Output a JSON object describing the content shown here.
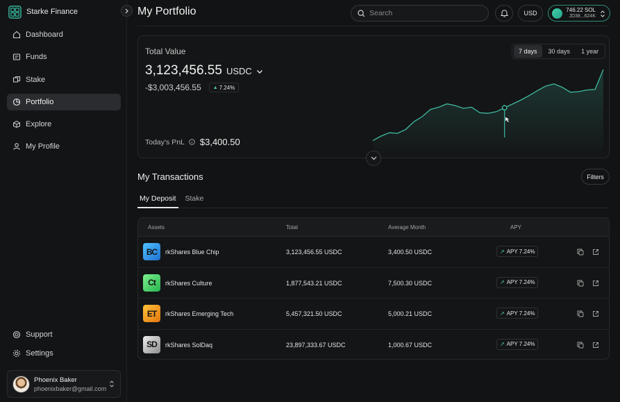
{
  "app": {
    "name": "Starke Finance"
  },
  "sidebar": {
    "items": [
      {
        "label": "Dashboard",
        "icon": "home-icon"
      },
      {
        "label": "Funds",
        "icon": "funds-icon"
      },
      {
        "label": "Stake",
        "icon": "stake-icon"
      },
      {
        "label": "Portfolio",
        "icon": "portfolio-icon",
        "active": true
      },
      {
        "label": "Explore",
        "icon": "explore-icon"
      },
      {
        "label": "My Profile",
        "icon": "profile-icon"
      }
    ],
    "bottom": [
      {
        "label": "Support",
        "icon": "support-icon"
      },
      {
        "label": "Settings",
        "icon": "gear-icon"
      }
    ],
    "user": {
      "name": "Phoenix Baker",
      "email": "phoenixbaker@gmail.com"
    }
  },
  "header": {
    "title": "My Portfolio",
    "search_placeholder": "Search",
    "currency": "USD",
    "wallet": {
      "balance": "746.22 SOL",
      "address": "JD38...624K"
    }
  },
  "portfolio": {
    "total_label": "Total Value",
    "total_value": "3,123,456.55",
    "unit": "USDC",
    "change": "-$3,003,456.55",
    "change_pct": "7.24%",
    "pnl_label": "Today's PnL",
    "pnl_value": "$3,400.50",
    "ranges": [
      "7 days",
      "30 days",
      "1 year"
    ],
    "active_range": "7 days"
  },
  "chart_data": {
    "type": "area",
    "title": "Total Value",
    "x": [
      0,
      1,
      2,
      3,
      4,
      5,
      6,
      7,
      8,
      9,
      10,
      11,
      12,
      13,
      14,
      15,
      16,
      17,
      18,
      19,
      20,
      21,
      22,
      23,
      24,
      25,
      26,
      27,
      28
    ],
    "values": [
      12,
      20,
      26,
      25,
      32,
      46,
      55,
      68,
      72,
      78,
      75,
      70,
      72,
      62,
      61,
      64,
      71,
      78,
      85,
      93,
      102,
      110,
      114,
      108,
      99,
      100,
      103,
      104,
      140
    ],
    "highlighted_index": 16,
    "xlabel": "",
    "ylabel": "",
    "ylim": [
      0,
      150
    ],
    "grid": false
  },
  "transactions": {
    "title": "My Transactions",
    "filters_label": "Filters",
    "tabs": [
      "My Deposit",
      "Stake"
    ],
    "columns": [
      "Assets",
      "Total",
      "Average Month",
      "APY"
    ],
    "rows": [
      {
        "logo": "BC",
        "logo_color": "#2a8fe0",
        "name": "rkShares Blue Chip",
        "total": "3,123,456.55 USDC",
        "avg": "3,400.50 USDC",
        "apy": "APY 7.24%"
      },
      {
        "logo": "Ct",
        "logo_color": "#4fd66d",
        "name": "rkShares Culture",
        "total": "1,877,543.21 USDC",
        "avg": "7,500.30 USDC",
        "apy": "APY 7.24%"
      },
      {
        "logo": "ET",
        "logo_color": "#f2a21c",
        "name": "rkShares Emerging Tech",
        "total": "5,457,321.50 USDC",
        "avg": "5,000.21 USDC",
        "apy": "APY 7.24%"
      },
      {
        "logo": "SD",
        "logo_color": "#c9c9c9",
        "name": "rkShares SolDaq",
        "total": "23,897,333.67 USDC",
        "avg": "1,000.67 USDC",
        "apy": "APY 7.24%"
      }
    ]
  },
  "colors": {
    "accent": "#3fb9a0",
    "up": "#4cc99b",
    "background": "#121314"
  }
}
